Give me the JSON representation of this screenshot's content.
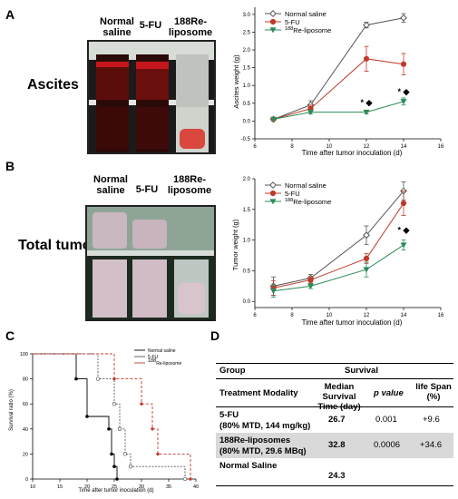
{
  "panels": {
    "A": {
      "letter": "A",
      "side_label": "Ascites",
      "photo_labels": [
        "Normal saline",
        "5-FU",
        "188Re-liposome"
      ]
    },
    "B": {
      "letter": "B",
      "side_label": "Total tumor",
      "photo_labels": [
        "Normal saline",
        "5-FU",
        "188Re-liposome"
      ]
    },
    "C": {
      "letter": "C"
    },
    "D": {
      "letter": "D"
    }
  },
  "colors": {
    "normal_saline": "#555555",
    "five_fu": "#c0392b",
    "re_liposome": "#2e8b57"
  },
  "chart_data": [
    {
      "id": "A",
      "type": "line",
      "xlabel": "Time after tumor inoculation (d)",
      "ylabel": "Ascites weight (g)",
      "xlim": [
        6,
        16
      ],
      "ylim": [
        -0.5,
        3.2
      ],
      "xticks": [
        6,
        8,
        10,
        12,
        14,
        16
      ],
      "yticks": [
        -0.5,
        0.0,
        0.5,
        1.0,
        1.5,
        2.0,
        2.5,
        3.0
      ],
      "x": [
        7,
        9,
        12,
        14
      ],
      "series": [
        {
          "name": "Normal saline",
          "values": [
            0.05,
            0.45,
            2.7,
            2.9
          ],
          "errors": [
            0.03,
            0.12,
            0.08,
            0.12
          ]
        },
        {
          "name": "5-FU",
          "values": [
            0.05,
            0.35,
            1.75,
            1.6
          ],
          "errors": [
            0.03,
            0.1,
            0.35,
            0.3
          ]
        },
        {
          "name": "188Re-liposome",
          "values": [
            0.05,
            0.25,
            0.25,
            0.55
          ],
          "errors": [
            0.03,
            0.05,
            0.05,
            0.1
          ]
        }
      ],
      "annotations": [
        {
          "x": 12,
          "y": 0.45,
          "text": "* ◆"
        },
        {
          "x": 14,
          "y": 0.75,
          "text": "* ◆"
        }
      ],
      "legend": "top-left"
    },
    {
      "id": "B",
      "type": "line",
      "xlabel": "Time after tumor inoculation (d)",
      "ylabel": "Tumor weight (g)",
      "xlim": [
        6,
        16
      ],
      "ylim": [
        -0.1,
        2.0
      ],
      "xticks": [
        6,
        8,
        10,
        12,
        14,
        16
      ],
      "yticks": [
        0.0,
        0.5,
        1.0,
        1.5,
        2.0
      ],
      "x": [
        7,
        9,
        12,
        14
      ],
      "series": [
        {
          "name": "Normal saline",
          "values": [
            0.25,
            0.38,
            1.08,
            1.8
          ],
          "errors": [
            0.15,
            0.06,
            0.15,
            0.15
          ]
        },
        {
          "name": "5-FU",
          "values": [
            0.22,
            0.35,
            0.7,
            1.6
          ],
          "errors": [
            0.12,
            0.05,
            0.08,
            0.2
          ]
        },
        {
          "name": "188Re-liposome",
          "values": [
            0.17,
            0.25,
            0.52,
            0.92
          ],
          "errors": [
            0.1,
            0.04,
            0.12,
            0.08
          ]
        }
      ],
      "annotations": [
        {
          "x": 14,
          "y": 1.12,
          "text": "* ◆"
        }
      ],
      "legend": "top-left"
    },
    {
      "id": "C",
      "type": "line",
      "xlabel": "Time after tumor inoculation (d)",
      "ylabel": "Survival ratio (%)",
      "xlim": [
        10,
        40
      ],
      "ylim": [
        0,
        100
      ],
      "xticks": [
        10,
        15,
        20,
        25,
        30,
        35,
        40
      ],
      "yticks": [
        0,
        20,
        40,
        60,
        80,
        100
      ],
      "series": [
        {
          "name": "Normal saline",
          "steps": [
            [
              10,
              100
            ],
            [
              18,
              100
            ],
            [
              18,
              80
            ],
            [
              20,
              80
            ],
            [
              20,
              50
            ],
            [
              24,
              50
            ],
            [
              24,
              40
            ],
            [
              24.5,
              40
            ],
            [
              24.5,
              20
            ],
            [
              25,
              20
            ],
            [
              25,
              10
            ],
            [
              25.5,
              10
            ],
            [
              25.5,
              0
            ]
          ]
        },
        {
          "name": "5-FU",
          "steps": [
            [
              10,
              100
            ],
            [
              22,
              100
            ],
            [
              22,
              80
            ],
            [
              25,
              80
            ],
            [
              25,
              60
            ],
            [
              26,
              60
            ],
            [
              26,
              40
            ],
            [
              27,
              40
            ],
            [
              27,
              20
            ],
            [
              28,
              20
            ],
            [
              28,
              10
            ],
            [
              38,
              10
            ],
            [
              38,
              0
            ]
          ]
        },
        {
          "name": "188Re-liposome",
          "steps": [
            [
              10,
              100
            ],
            [
              25,
              100
            ],
            [
              25,
              80
            ],
            [
              30,
              80
            ],
            [
              30,
              60
            ],
            [
              32,
              60
            ],
            [
              32,
              40
            ],
            [
              33,
              40
            ],
            [
              33,
              20
            ],
            [
              39,
              20
            ],
            [
              39,
              0
            ]
          ]
        }
      ],
      "legend": "top-right"
    }
  ],
  "table": {
    "header_group": "Group",
    "header_survival": "Survival",
    "col1": "Treatment Modality",
    "col2": "Median Survival Time (day)",
    "col3": "p value",
    "col4": "life Span (%)",
    "rows": [
      {
        "name": "5-FU",
        "sub": "(80% MTD, 144 mg/kg)",
        "median": "26.7",
        "p": "0.001",
        "life": "+9.6"
      },
      {
        "name": "188Re-liposomes",
        "sub": "(80% MTD, 29.6 MBq)",
        "median": "32.8",
        "p": "0.0006",
        "life": "+34.6"
      },
      {
        "name": "Normal Saline",
        "sub": "",
        "median": "24.3",
        "p": "",
        "life": ""
      }
    ]
  }
}
